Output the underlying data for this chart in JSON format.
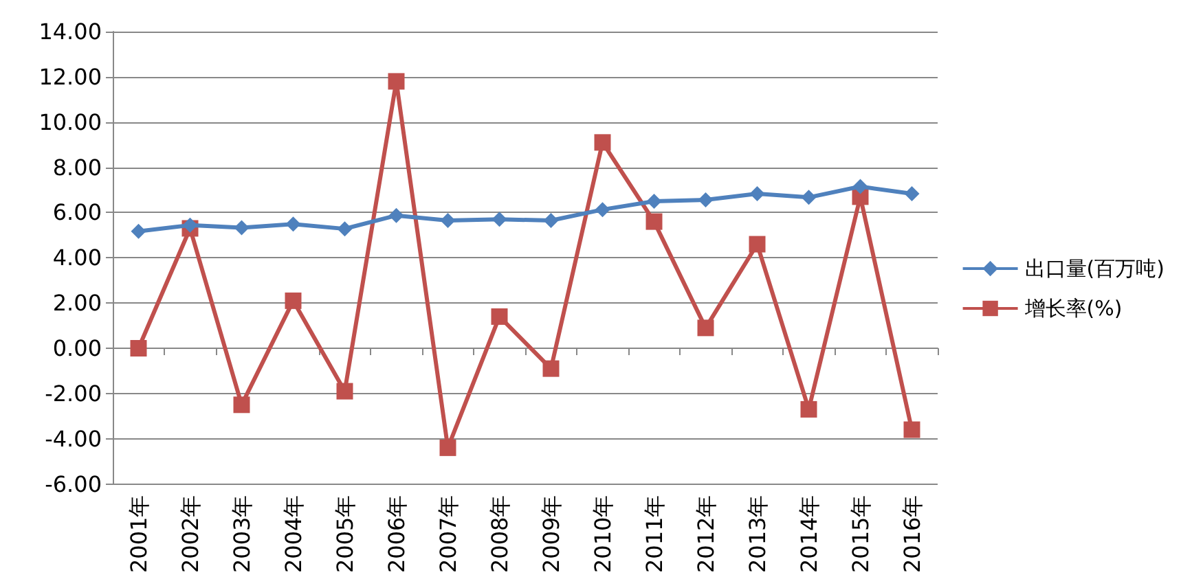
{
  "chart_data": {
    "type": "line",
    "categories": [
      "2001年",
      "2002年",
      "2003年",
      "2004年",
      "2005年",
      "2006年",
      "2007年",
      "2008年",
      "2009年",
      "2010年",
      "2011年",
      "2012年",
      "2013年",
      "2014年",
      "2015年",
      "2016年"
    ],
    "series": [
      {
        "name": "出口量(百万吨)",
        "color": "#4f81bd",
        "marker": "diamond",
        "values": [
          5.17,
          5.44,
          5.33,
          5.49,
          5.28,
          5.87,
          5.65,
          5.7,
          5.65,
          6.13,
          6.5,
          6.56,
          6.83,
          6.67,
          7.15,
          6.83
        ]
      },
      {
        "name": "增长率(%)",
        "color": "#c0504d",
        "marker": "square",
        "values": [
          0.0,
          5.3,
          -2.5,
          2.1,
          -1.9,
          11.8,
          -4.4,
          1.4,
          -0.9,
          9.1,
          5.6,
          0.9,
          4.6,
          -2.7,
          6.7,
          -3.6
        ]
      }
    ],
    "ylim": [
      -6,
      14
    ],
    "yticks": [
      {
        "value": -6,
        "label": "-6.00"
      },
      {
        "value": -4,
        "label": "-4.00"
      },
      {
        "value": -2,
        "label": "-2.00"
      },
      {
        "value": 0,
        "label": "0.00"
      },
      {
        "value": 2,
        "label": "2.00"
      },
      {
        "value": 4,
        "label": "4.00"
      },
      {
        "value": 6,
        "label": "6.00"
      },
      {
        "value": 8,
        "label": "8.00"
      },
      {
        "value": 10,
        "label": "10.00"
      },
      {
        "value": 12,
        "label": "12.00"
      },
      {
        "value": 14,
        "label": "14.00"
      }
    ],
    "grid": "y",
    "legend": "right"
  }
}
